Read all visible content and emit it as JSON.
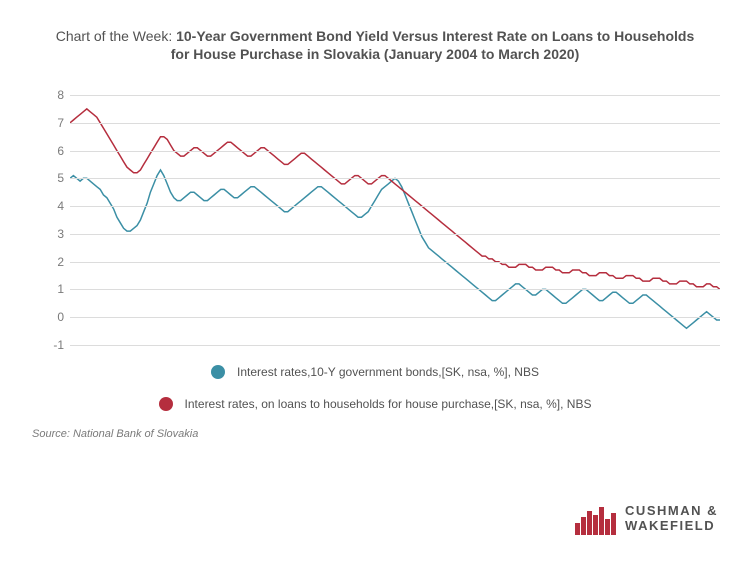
{
  "title": {
    "prefix": "Chart of the Week: ",
    "main_line1": "10-Year Government Bond Yield Versus Interest Rate on Loans to Households",
    "main_line2": "for House Purchase in Slovakia (January 2004 to March 2020)",
    "fontsize": 14,
    "color_prefix": "#525252",
    "color_main": "#525252"
  },
  "chart": {
    "type": "line",
    "background_color": "#ffffff",
    "grid_color": "#dcdcdc",
    "ylim": [
      -1,
      8
    ],
    "ytick_step": 1,
    "yticks": [
      -1,
      0,
      1,
      2,
      3,
      4,
      5,
      6,
      7,
      8
    ],
    "axis_label_color": "#7a7a7a",
    "axis_label_fontsize": 12,
    "line_width": 1.5,
    "series": {
      "bonds": {
        "label": "Interest rates,10-Y government bonds,[SK, nsa, %], NBS",
        "color": "#3b8fa5",
        "values": [
          5.0,
          5.1,
          5.0,
          4.9,
          5.0,
          5.0,
          4.9,
          4.8,
          4.7,
          4.6,
          4.4,
          4.3,
          4.1,
          3.9,
          3.6,
          3.4,
          3.2,
          3.1,
          3.1,
          3.2,
          3.3,
          3.5,
          3.8,
          4.1,
          4.5,
          4.8,
          5.1,
          5.3,
          5.1,
          4.8,
          4.5,
          4.3,
          4.2,
          4.2,
          4.3,
          4.4,
          4.5,
          4.5,
          4.4,
          4.3,
          4.2,
          4.2,
          4.3,
          4.4,
          4.5,
          4.6,
          4.6,
          4.5,
          4.4,
          4.3,
          4.3,
          4.4,
          4.5,
          4.6,
          4.7,
          4.7,
          4.6,
          4.5,
          4.4,
          4.3,
          4.2,
          4.1,
          4.0,
          3.9,
          3.8,
          3.8,
          3.9,
          4.0,
          4.1,
          4.2,
          4.3,
          4.4,
          4.5,
          4.6,
          4.7,
          4.7,
          4.6,
          4.5,
          4.4,
          4.3,
          4.2,
          4.1,
          4.0,
          3.9,
          3.8,
          3.7,
          3.6,
          3.6,
          3.7,
          3.8,
          4.0,
          4.2,
          4.4,
          4.6,
          4.7,
          4.8,
          4.9,
          5.0,
          4.9,
          4.7,
          4.4,
          4.1,
          3.8,
          3.5,
          3.2,
          2.9,
          2.7,
          2.5,
          2.4,
          2.3,
          2.2,
          2.1,
          2.0,
          1.9,
          1.8,
          1.7,
          1.6,
          1.5,
          1.4,
          1.3,
          1.2,
          1.1,
          1.0,
          0.9,
          0.8,
          0.7,
          0.6,
          0.6,
          0.7,
          0.8,
          0.9,
          1.0,
          1.1,
          1.2,
          1.2,
          1.1,
          1.0,
          0.9,
          0.8,
          0.8,
          0.9,
          1.0,
          1.0,
          0.9,
          0.8,
          0.7,
          0.6,
          0.5,
          0.5,
          0.6,
          0.7,
          0.8,
          0.9,
          1.0,
          1.0,
          0.9,
          0.8,
          0.7,
          0.6,
          0.6,
          0.7,
          0.8,
          0.9,
          0.9,
          0.8,
          0.7,
          0.6,
          0.5,
          0.5,
          0.6,
          0.7,
          0.8,
          0.8,
          0.7,
          0.6,
          0.5,
          0.4,
          0.3,
          0.2,
          0.1,
          0.0,
          -0.1,
          -0.2,
          -0.3,
          -0.4,
          -0.3,
          -0.2,
          -0.1,
          0.0,
          0.1,
          0.2,
          0.1,
          0.0,
          -0.1,
          -0.1
        ]
      },
      "loans": {
        "label": "Interest rates, on loans to households for house purchase,[SK, nsa, %], NBS",
        "color": "#b52e3e",
        "values": [
          7.0,
          7.1,
          7.2,
          7.3,
          7.4,
          7.5,
          7.4,
          7.3,
          7.2,
          7.0,
          6.8,
          6.6,
          6.4,
          6.2,
          6.0,
          5.8,
          5.6,
          5.4,
          5.3,
          5.2,
          5.2,
          5.3,
          5.5,
          5.7,
          5.9,
          6.1,
          6.3,
          6.5,
          6.5,
          6.4,
          6.2,
          6.0,
          5.9,
          5.8,
          5.8,
          5.9,
          6.0,
          6.1,
          6.1,
          6.0,
          5.9,
          5.8,
          5.8,
          5.9,
          6.0,
          6.1,
          6.2,
          6.3,
          6.3,
          6.2,
          6.1,
          6.0,
          5.9,
          5.8,
          5.8,
          5.9,
          6.0,
          6.1,
          6.1,
          6.0,
          5.9,
          5.8,
          5.7,
          5.6,
          5.5,
          5.5,
          5.6,
          5.7,
          5.8,
          5.9,
          5.9,
          5.8,
          5.7,
          5.6,
          5.5,
          5.4,
          5.3,
          5.2,
          5.1,
          5.0,
          4.9,
          4.8,
          4.8,
          4.9,
          5.0,
          5.1,
          5.1,
          5.0,
          4.9,
          4.8,
          4.8,
          4.9,
          5.0,
          5.1,
          5.1,
          5.0,
          4.9,
          4.8,
          4.7,
          4.6,
          4.5,
          4.4,
          4.3,
          4.2,
          4.1,
          4.0,
          3.9,
          3.8,
          3.7,
          3.6,
          3.5,
          3.4,
          3.3,
          3.2,
          3.1,
          3.0,
          2.9,
          2.8,
          2.7,
          2.6,
          2.5,
          2.4,
          2.3,
          2.2,
          2.2,
          2.1,
          2.1,
          2.0,
          2.0,
          1.9,
          1.9,
          1.8,
          1.8,
          1.8,
          1.9,
          1.9,
          1.9,
          1.8,
          1.8,
          1.7,
          1.7,
          1.7,
          1.8,
          1.8,
          1.8,
          1.7,
          1.7,
          1.6,
          1.6,
          1.6,
          1.7,
          1.7,
          1.7,
          1.6,
          1.6,
          1.5,
          1.5,
          1.5,
          1.6,
          1.6,
          1.6,
          1.5,
          1.5,
          1.4,
          1.4,
          1.4,
          1.5,
          1.5,
          1.5,
          1.4,
          1.4,
          1.3,
          1.3,
          1.3,
          1.4,
          1.4,
          1.4,
          1.3,
          1.3,
          1.2,
          1.2,
          1.2,
          1.3,
          1.3,
          1.3,
          1.2,
          1.2,
          1.1,
          1.1,
          1.1,
          1.2,
          1.2,
          1.1,
          1.1,
          1.0
        ]
      }
    }
  },
  "legend": {
    "fontsize": 12,
    "color": "#525252",
    "dot_size": 14
  },
  "source": {
    "text": "Source: National Bank of Slovakia",
    "fontsize": 11,
    "color": "#7a7a7a"
  },
  "logo": {
    "line1": "CUSHMAN &",
    "line2": "WAKEFIELD",
    "text_color": "#525252",
    "icon_color": "#b52e3e"
  }
}
